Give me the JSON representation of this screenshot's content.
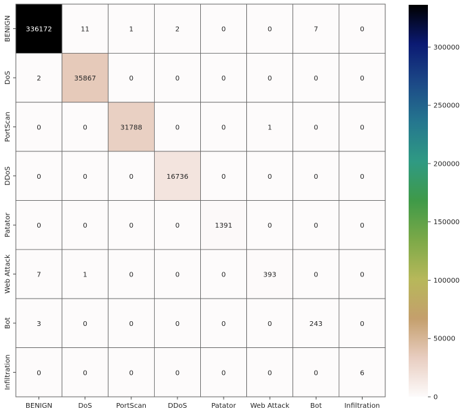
{
  "chart_data": {
    "type": "heatmap",
    "title": "",
    "xlabel": "",
    "ylabel": "",
    "x_categories": [
      "BENIGN",
      "DoS",
      "PortScan",
      "DDoS",
      "Patator",
      "Web Attack",
      "Bot",
      "Infiltration"
    ],
    "y_categories": [
      "BENIGN",
      "DoS",
      "PortScan",
      "DDoS",
      "Patator",
      "Web Attack",
      "Bot",
      "Infiltration"
    ],
    "matrix": [
      [
        336172,
        11,
        1,
        2,
        0,
        0,
        7,
        0
      ],
      [
        2,
        35867,
        0,
        0,
        0,
        0,
        0,
        0
      ],
      [
        0,
        0,
        31788,
        0,
        0,
        1,
        0,
        0
      ],
      [
        0,
        0,
        0,
        16736,
        0,
        0,
        0,
        0
      ],
      [
        0,
        0,
        0,
        0,
        1391,
        0,
        0,
        0
      ],
      [
        7,
        1,
        0,
        0,
        0,
        393,
        0,
        0
      ],
      [
        3,
        0,
        0,
        0,
        0,
        0,
        243,
        0
      ],
      [
        0,
        0,
        0,
        0,
        0,
        0,
        0,
        6
      ]
    ],
    "colorbar": {
      "vmin": 0,
      "vmax": 336172,
      "ticks": [
        0,
        50000,
        100000,
        150000,
        200000,
        250000,
        300000
      ],
      "colormap": "gist_earth_r",
      "colors": [
        "#fdfbfb",
        "#e8cdc0",
        "#c49f6c",
        "#b7b85a",
        "#7ca948",
        "#3f9a48",
        "#2f9a83",
        "#25778f",
        "#1c4987",
        "#0b1a73",
        "#000000"
      ]
    },
    "grid_line_color": "#666666",
    "legend": "right"
  }
}
